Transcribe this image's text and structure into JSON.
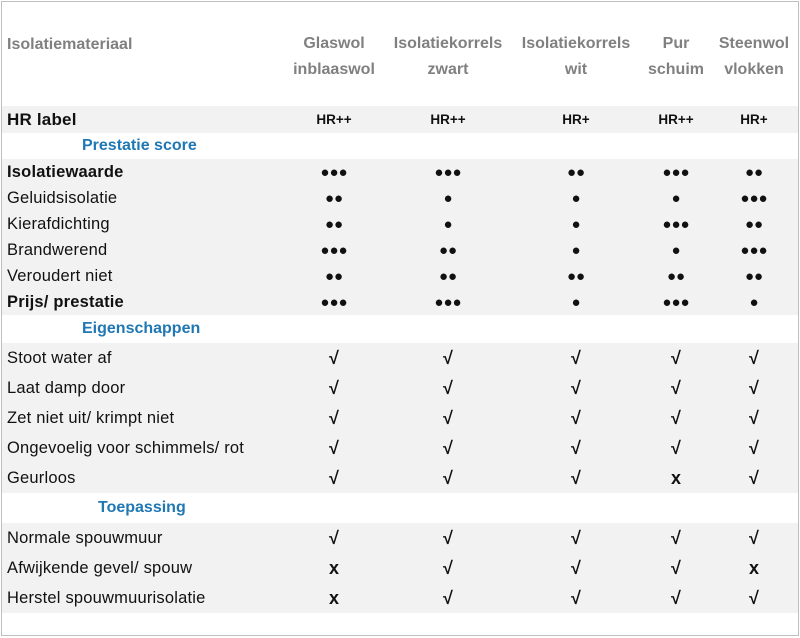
{
  "header": {
    "col0": "Isolatiemateriaal",
    "cols": [
      {
        "line1": "Glaswol",
        "line2": "inblaaswol"
      },
      {
        "line1": "Isolatiekorrels",
        "line2": "zwart"
      },
      {
        "line1": "Isolatiekorrels",
        "line2": "wit"
      },
      {
        "line1": "Pur",
        "line2": "schuim"
      },
      {
        "line1": "Steenwol",
        "line2": "vlokken"
      }
    ]
  },
  "hr_row": {
    "label": "HR label",
    "values": [
      "HR++",
      "HR++",
      "HR+",
      "HR++",
      "HR+"
    ]
  },
  "sections": {
    "prestatie": "Prestatie score",
    "eigenschappen": "Eigenschappen",
    "toepassing": "Toepassing"
  },
  "prestatie_rows": [
    {
      "label": "Isolatiewaarde",
      "values": [
        "●●●",
        "●●●",
        "●●",
        "●●●",
        "●●"
      ]
    },
    {
      "label": "Geluidsisolatie",
      "values": [
        "●●",
        "●",
        "●",
        "●",
        "●●●"
      ]
    },
    {
      "label": "Kierafdichting",
      "values": [
        "●●",
        "●",
        "●",
        "●●●",
        "●●"
      ]
    },
    {
      "label": "Brandwerend",
      "values": [
        "●●●",
        "●●",
        "●",
        "●",
        "●●●"
      ]
    },
    {
      "label": "Veroudert niet",
      "values": [
        "●●",
        "●●",
        "●●",
        "●●",
        "●●"
      ]
    },
    {
      "label": "Prijs/ prestatie",
      "values": [
        "●●●",
        "●●●",
        "●",
        "●●●",
        "●"
      ]
    }
  ],
  "eigenschappen_rows": [
    {
      "label": "Stoot water af",
      "values": [
        "√",
        "√",
        "√",
        "√",
        "√"
      ]
    },
    {
      "label": "Laat damp door",
      "values": [
        "√",
        "√",
        "√",
        "√",
        "√"
      ]
    },
    {
      "label": "Zet niet uit/ krimpt niet",
      "values": [
        "√",
        "√",
        "√",
        "√",
        "√"
      ]
    },
    {
      "label": "Ongevoelig voor schimmels/ rot",
      "values": [
        "√",
        "√",
        "√",
        "√",
        "√"
      ]
    },
    {
      "label": "Geurloos",
      "values": [
        "√",
        "√",
        "√",
        "x",
        "√"
      ]
    }
  ],
  "toepassing_rows": [
    {
      "label": "Normale spouwmuur",
      "values": [
        "√",
        "√",
        "√",
        "√",
        "√"
      ]
    },
    {
      "label": "Afwijkende gevel/ spouw",
      "values": [
        "x",
        "√",
        "√",
        "√",
        "x"
      ]
    },
    {
      "label": "Herstel spouwmuurisolatie",
      "values": [
        "x",
        "√",
        "√",
        "√",
        "√"
      ]
    }
  ]
}
